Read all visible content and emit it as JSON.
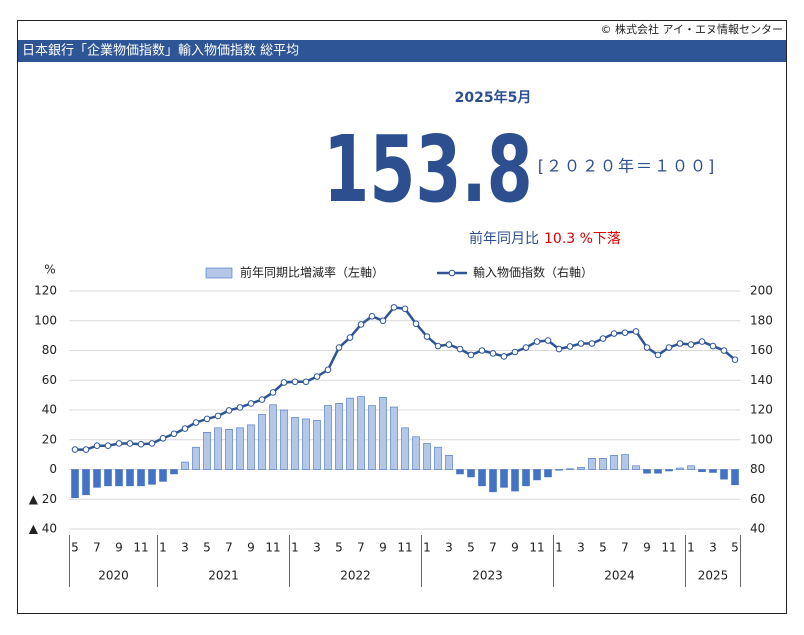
{
  "header": {
    "copyright": "© 株式会社 アイ・エヌ情報センター",
    "title": "日本銀行「企業物価指数」輸入物価指数 総平均"
  },
  "headline": {
    "period": "2025年5月",
    "value": "153.8",
    "base": "[２０２０年＝１００]",
    "change_label": "前年同月比",
    "change": "10.3 %下落"
  },
  "chart_data": {
    "type": "bar_line",
    "y_unit": "%",
    "categories": [
      "5",
      null,
      "7",
      null,
      "9",
      null,
      "11",
      null,
      "1",
      null,
      "3",
      null,
      "5",
      null,
      "7",
      null,
      "9",
      null,
      "11",
      null,
      "1",
      null,
      "3",
      null,
      "5",
      null,
      "7",
      null,
      "9",
      null,
      "11",
      null,
      "1",
      null,
      "3",
      null,
      "5",
      null,
      "7",
      null,
      "9",
      null,
      "11",
      null,
      "1",
      null,
      "3",
      null,
      "5",
      null,
      "7",
      null,
      "9",
      null,
      "11",
      null,
      "1",
      null,
      "3",
      null,
      "5"
    ],
    "year_labels": [
      "2020",
      "2021",
      "2022",
      "2023",
      "2024",
      "2025"
    ],
    "series": [
      {
        "name": "前年同期比増減率（左軸）",
        "type": "bar",
        "color": "#b4c7e7",
        "negative_color": "#4472c4",
        "values": [
          -19,
          -17,
          -12,
          -11,
          -11,
          -11,
          -11,
          -10,
          -8,
          -3,
          5,
          15,
          25,
          28,
          27,
          28,
          30,
          37,
          43.5,
          40,
          35,
          34,
          33,
          43,
          44.5,
          48,
          49,
          43,
          48.5,
          42,
          28,
          22,
          17.5,
          15,
          9.5,
          -3,
          -5,
          -11,
          -15,
          -12,
          -14.5,
          -11,
          -7,
          -5,
          -0.5,
          0.5,
          1.5,
          7.5,
          7.5,
          9.5,
          10,
          2.5,
          -2.5,
          -2.5,
          -1,
          1,
          2.5,
          -1.5,
          -2,
          -6.5,
          -10.3
        ]
      },
      {
        "name": "輸入物価指数（右軸）",
        "type": "line",
        "axis": "y2",
        "color": "#2e5596",
        "values": [
          93.4,
          93.4,
          96,
          96,
          97.5,
          97.5,
          97,
          97.5,
          101,
          104,
          107.5,
          111.6,
          114,
          116,
          119.7,
          121.7,
          124.4,
          127,
          131.8,
          138.5,
          139,
          139,
          142.5,
          147,
          162,
          168.7,
          177.5,
          183,
          180,
          189,
          188,
          178,
          169.4,
          163,
          164,
          161,
          157,
          160,
          158,
          156,
          159,
          162,
          166,
          166.7,
          161,
          162.7,
          164.7,
          164.7,
          168,
          171.4,
          172,
          172.8,
          162,
          157,
          162,
          164.7,
          164,
          166,
          163,
          160,
          153.8
        ]
      }
    ],
    "ylim": [
      -40,
      120
    ],
    "yticks": [
      120,
      100,
      80,
      60,
      40,
      20,
      0,
      {
        "value": -20,
        "label": "▲ 20"
      },
      {
        "value": -40,
        "label": "▲ 40"
      }
    ],
    "y2lim": [
      40,
      200
    ],
    "y2ticks": [
      200,
      180,
      160,
      140,
      120,
      100,
      80,
      60,
      40
    ],
    "grid": true
  }
}
